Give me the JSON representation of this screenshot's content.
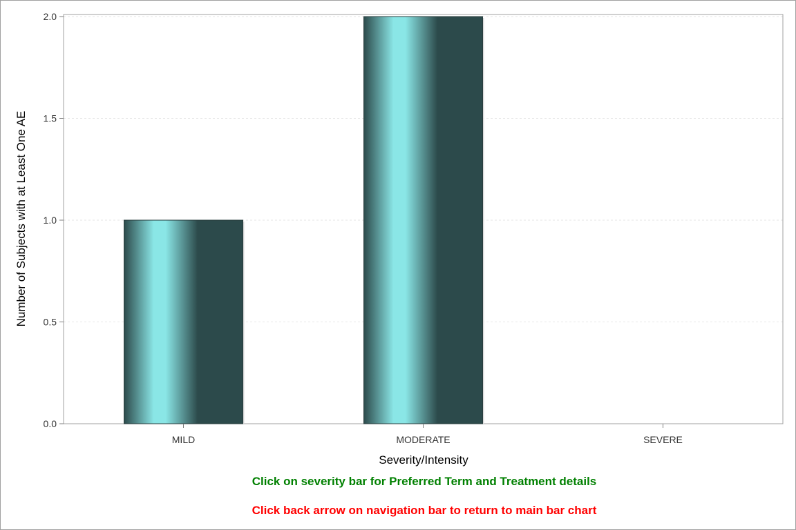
{
  "chart_data": {
    "type": "bar",
    "title": "",
    "xlabel": "Severity/Intensity",
    "ylabel": "Number of Subjects with at Least One AE",
    "categories": [
      "MILD",
      "MODERATE",
      "SEVERE"
    ],
    "values": [
      1,
      2,
      0
    ],
    "ylim": [
      0,
      2
    ],
    "yticks": [
      "0.0",
      "0.5",
      "1.0",
      "1.5",
      "2.0"
    ],
    "grid": true,
    "legend": "none",
    "bar_colors": {
      "edge": "#2c4a4b",
      "highlight": "#8ae6e6",
      "outline": "#2a3d3e"
    }
  },
  "notes": {
    "detail": {
      "text": "Click on severity bar for Preferred Term and Treatment details",
      "color": "#008000"
    },
    "back": {
      "text": "Click back arrow on navigation bar to return to main bar chart",
      "color": "#ff0000"
    }
  }
}
